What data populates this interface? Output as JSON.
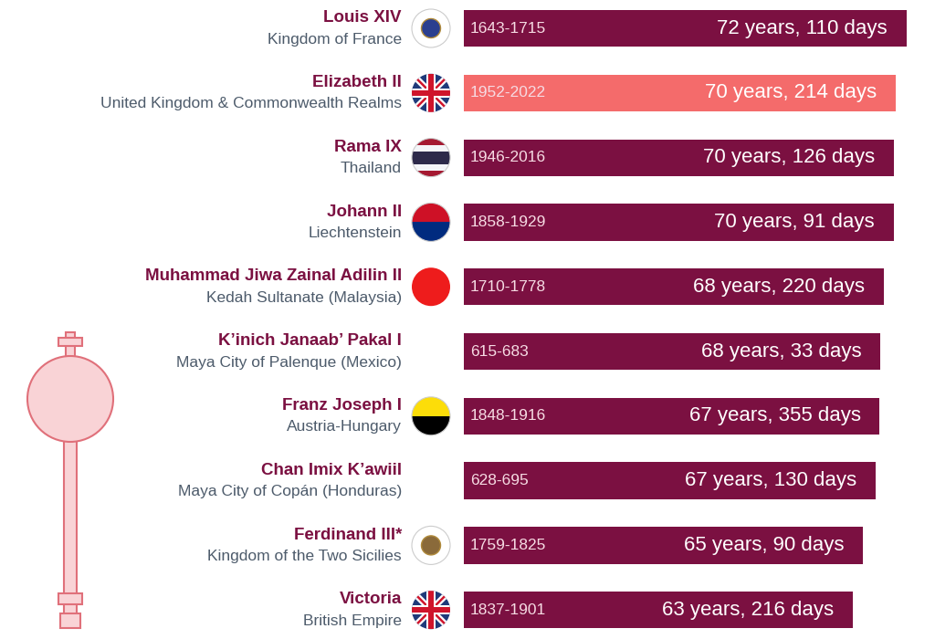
{
  "chart_data": {
    "type": "bar",
    "orientation": "horizontal",
    "categories": [
      "Louis XIV",
      "Elizabeth II",
      "Rama IX",
      "Johann II",
      "Muhammad Jiwa Zainal Adilin II",
      "K’inich Janaab’ Pakal I",
      "Franz Joseph I",
      "Chan Imix K’awiil",
      "Ferdinand III*",
      "Victoria"
    ],
    "countries": [
      "Kingdom of France",
      "United Kingdom & Commonwealth Realms",
      "Thailand",
      "Liechtenstein",
      "Kedah Sultanate (Malaysia)",
      "Maya City of Palenque (Mexico)",
      "Austria-Hungary",
      "Maya City of Copán (Honduras)",
      "Kingdom of the Two Sicilies",
      "British Empire"
    ],
    "periods": [
      "1643-1715",
      "1952-2022",
      "1946-2016",
      "1858-1929",
      "1710-1778",
      "615-683",
      "1848-1916",
      "628-695",
      "1759-1825",
      "1837-1901"
    ],
    "values": [
      72.3,
      70.59,
      70.34,
      70.25,
      68.6,
      68.09,
      67.97,
      67.36,
      65.25,
      63.59
    ],
    "value_labels": [
      "72 years, 110 days",
      "70 years, 214 days",
      "70 years, 126 days",
      "70 years, 91 days",
      "68 years, 220 days",
      "68 years, 33 days",
      "67 years, 355 days",
      "67 years, 130 days",
      "65 years, 90 days",
      "63 years, 216 days"
    ],
    "colors": [
      "#7b1041",
      "#f46b6b",
      "#7b1041",
      "#7b1041",
      "#7b1041",
      "#7b1041",
      "#7b1041",
      "#7b1041",
      "#7b1041",
      "#7b1041"
    ],
    "xlim": [
      0,
      77
    ],
    "tick_labels": false,
    "data_labels": true
  }
}
